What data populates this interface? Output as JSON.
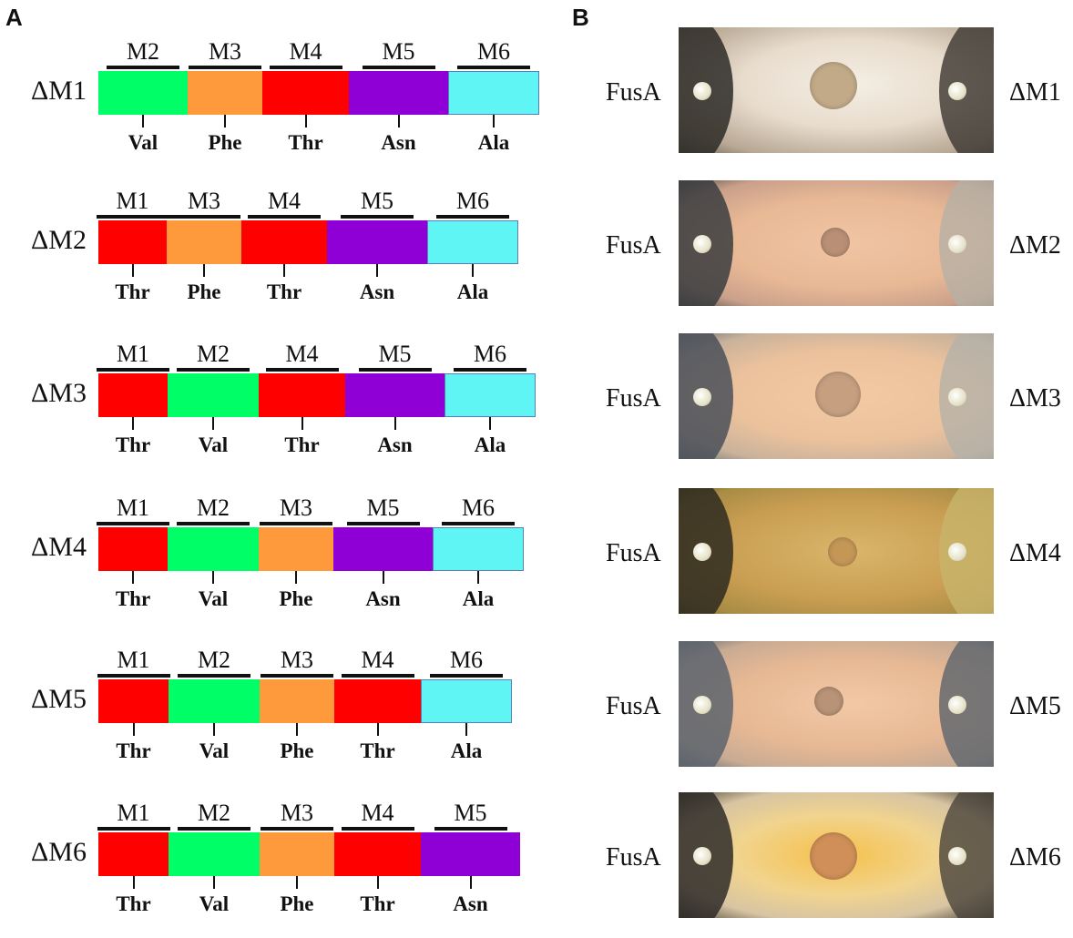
{
  "panels": {
    "a": "A",
    "b": "B"
  },
  "colors": {
    "Val": "#00ff66",
    "Phe": "#ff9a3c",
    "Thr": "#ff0000",
    "Asn": "#8f00d6",
    "Ala": "#5ff5f5"
  },
  "panel_a": [
    {
      "label": "ΔM1",
      "modules": [
        {
          "name": "M2",
          "aa": "Val"
        },
        {
          "name": "M3",
          "aa": "Phe"
        },
        {
          "name": "M4",
          "aa": "Thr"
        },
        {
          "name": "M5",
          "aa": "Asn"
        },
        {
          "name": "M6",
          "aa": "Ala"
        }
      ]
    },
    {
      "label": "ΔM2",
      "modules": [
        {
          "name": "M1",
          "aa": "Thr"
        },
        {
          "name": "M3",
          "aa": "Phe"
        },
        {
          "name": "M4",
          "aa": "Thr"
        },
        {
          "name": "M5",
          "aa": "Asn"
        },
        {
          "name": "M6",
          "aa": "Ala"
        }
      ]
    },
    {
      "label": "ΔM3",
      "modules": [
        {
          "name": "M1",
          "aa": "Thr"
        },
        {
          "name": "M2",
          "aa": "Val"
        },
        {
          "name": "M4",
          "aa": "Thr"
        },
        {
          "name": "M5",
          "aa": "Asn"
        },
        {
          "name": "M6",
          "aa": "Ala"
        }
      ]
    },
    {
      "label": "ΔM4",
      "modules": [
        {
          "name": "M1",
          "aa": "Thr"
        },
        {
          "name": "M2",
          "aa": "Val"
        },
        {
          "name": "M3",
          "aa": "Phe"
        },
        {
          "name": "M5",
          "aa": "Asn"
        },
        {
          "name": "M6",
          "aa": "Ala"
        }
      ]
    },
    {
      "label": "ΔM5",
      "modules": [
        {
          "name": "M1",
          "aa": "Thr"
        },
        {
          "name": "M2",
          "aa": "Val"
        },
        {
          "name": "M3",
          "aa": "Phe"
        },
        {
          "name": "M4",
          "aa": "Thr"
        },
        {
          "name": "M6",
          "aa": "Ala"
        }
      ]
    },
    {
      "label": "ΔM6",
      "modules": [
        {
          "name": "M1",
          "aa": "Thr"
        },
        {
          "name": "M2",
          "aa": "Val"
        },
        {
          "name": "M3",
          "aa": "Phe"
        },
        {
          "name": "M4",
          "aa": "Thr"
        },
        {
          "name": "M5",
          "aa": "Asn"
        }
      ]
    }
  ],
  "panel_b": [
    {
      "left": "FusA",
      "right": "ΔM1"
    },
    {
      "left": "FusA",
      "right": "ΔM2"
    },
    {
      "left": "FusA",
      "right": "ΔM3"
    },
    {
      "left": "FusA",
      "right": "ΔM4"
    },
    {
      "left": "FusA",
      "right": "ΔM5"
    },
    {
      "left": "FusA",
      "right": "ΔM6"
    }
  ]
}
